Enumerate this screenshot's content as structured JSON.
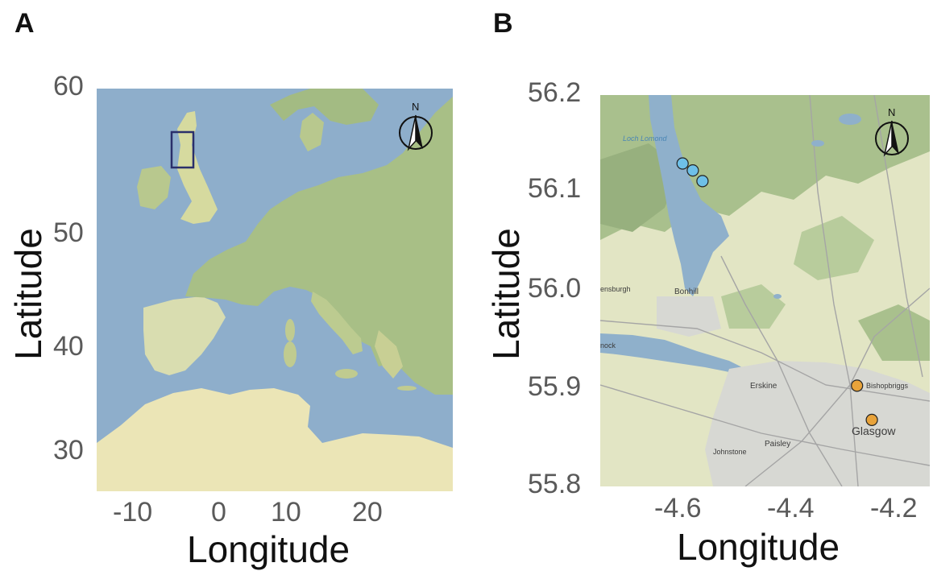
{
  "panels": [
    {
      "letter": "A",
      "xlabel": "Longitude",
      "ylabel": "Latitude",
      "xticks": [
        "-10",
        "0",
        "10",
        "20"
      ],
      "yticks": [
        "60",
        "50",
        "40",
        "30"
      ],
      "xlim": [
        -15,
        29
      ],
      "ylim": [
        26,
        60
      ],
      "compass_label": "N",
      "inset_box": {
        "lon": [
          -5.4,
          -3.4
        ],
        "lat": [
          54.5,
          57.5
        ]
      },
      "colors": {
        "sea": "#8eaecb",
        "land": "#e9e6b8",
        "forest": "#a9c28a",
        "box": "#2a2f6b"
      }
    },
    {
      "letter": "B",
      "xlabel": "Longitude",
      "ylabel": "Latitude",
      "xticks": [
        "-4.6",
        "-4.4",
        "-4.2"
      ],
      "yticks": [
        "56.2",
        "56.1",
        "56.0",
        "55.9",
        "55.8"
      ],
      "xlim": [
        -4.76,
        -4.18
      ],
      "ylim": [
        55.8,
        56.2
      ],
      "compass_label": "N",
      "place_labels": [
        "Loch Lomond",
        "ensburgh",
        "Bonhill",
        "nock",
        "Erskine",
        "Bishopbriggs",
        "Glasgow",
        "Paisley",
        "Johnstone"
      ],
      "points": [
        {
          "group": "blue",
          "lon": -4.615,
          "lat": 56.13
        },
        {
          "group": "blue",
          "lon": -4.597,
          "lat": 56.123
        },
        {
          "group": "blue",
          "lon": -4.58,
          "lat": 56.112
        },
        {
          "group": "orange",
          "lon": -4.308,
          "lat": 55.903
        },
        {
          "group": "orange",
          "lon": -4.282,
          "lat": 55.868
        }
      ],
      "colors": {
        "blue": "#6ec0e8",
        "orange": "#e8a33a",
        "water": "#8fb0cb",
        "land": "#e4e6c6",
        "urban": "#d8d8d8",
        "forest": "#a8c08e"
      }
    }
  ]
}
